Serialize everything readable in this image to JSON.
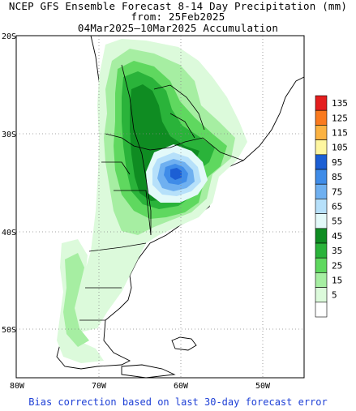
{
  "title": {
    "line1": "NCEP GFS Ensemble Forecast 8-14 Day Precipitation (mm)",
    "line2": "from: 25Feb2025",
    "line3": "04Mar2025—10Mar2025 Accumulation"
  },
  "axes": {
    "lat_labels": [
      "20S",
      "30S",
      "40S",
      "50S"
    ],
    "lon_labels": [
      "80W",
      "70W",
      "60W",
      "50W"
    ]
  },
  "legend": {
    "levels": [
      {
        "label": "135",
        "color": "#e41e1e"
      },
      {
        "label": "125",
        "color": "#fa7a1e"
      },
      {
        "label": "115",
        "color": "#fbb241"
      },
      {
        "label": "105",
        "color": "#fef6a0"
      },
      {
        "label": "95",
        "color": "#1c5fd4"
      },
      {
        "label": "85",
        "color": "#3f8ce8"
      },
      {
        "label": "75",
        "color": "#6fb0f0"
      },
      {
        "label": "65",
        "color": "#b6e0fa"
      },
      {
        "label": "55",
        "color": "#e3f9f9"
      },
      {
        "label": "45",
        "color": "#0f8c22"
      },
      {
        "label": "35",
        "color": "#2ab33a"
      },
      {
        "label": "25",
        "color": "#5fd85f"
      },
      {
        "label": "15",
        "color": "#a6eea2"
      },
      {
        "label": "5",
        "color": "#dcfadb"
      },
      {
        "label": "",
        "color": "#ffffff"
      }
    ]
  },
  "footer": "Bias correction based on last 30-day forecast error"
}
